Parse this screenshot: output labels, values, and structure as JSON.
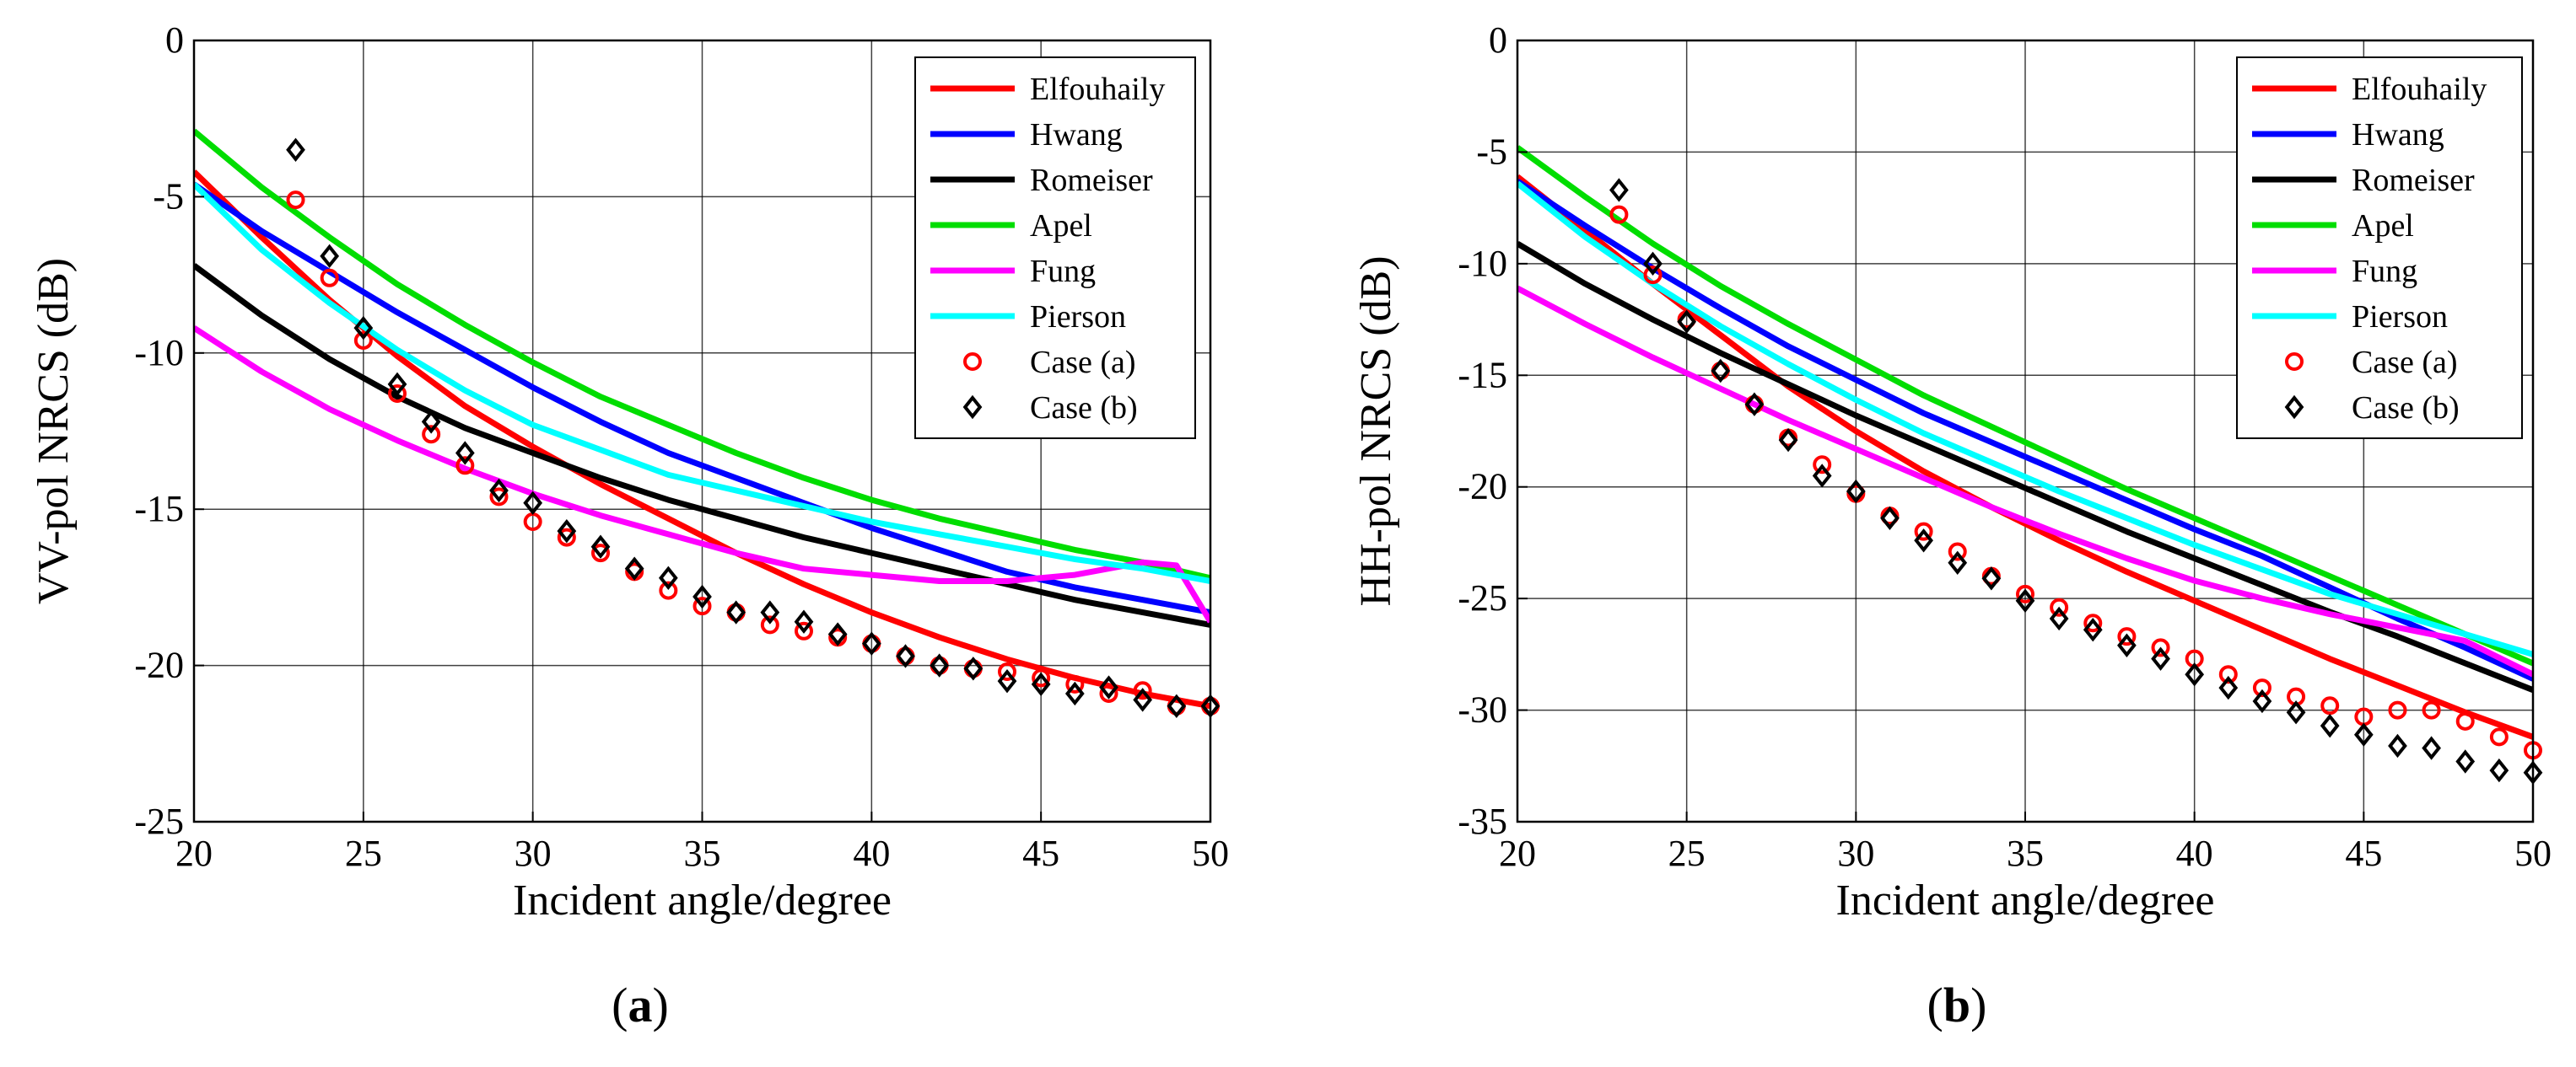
{
  "chart_data": [
    {
      "type": "line",
      "panel_label": "(a)",
      "panel_letter": "a",
      "xlabel": "Incident angle/degree",
      "ylabel": "VV-pol NRCS (dB)",
      "xlim": [
        20,
        50
      ],
      "ylim": [
        -25,
        0
      ],
      "xticks": [
        20,
        25,
        30,
        35,
        40,
        45,
        50
      ],
      "yticks": [
        0,
        -5,
        -10,
        -15,
        -20,
        -25
      ],
      "grid": true,
      "legend_position": "top-right",
      "series": [
        {
          "name": "Elfouhaily",
          "kind": "line",
          "color": "#ff0000",
          "x": [
            20,
            22,
            24,
            26,
            28,
            30,
            32,
            34,
            36,
            38,
            40,
            42,
            44,
            46,
            48,
            50
          ],
          "y": [
            -4.2,
            -6.3,
            -8.3,
            -10.1,
            -11.7,
            -13.0,
            -14.2,
            -15.3,
            -16.4,
            -17.4,
            -18.3,
            -19.1,
            -19.8,
            -20.4,
            -20.9,
            -21.3
          ]
        },
        {
          "name": "Hwang",
          "kind": "line",
          "color": "#0000ff",
          "x": [
            20,
            22,
            24,
            26,
            28,
            30,
            32,
            34,
            36,
            38,
            40,
            42,
            44,
            46,
            48,
            50
          ],
          "y": [
            -4.6,
            -6.1,
            -7.4,
            -8.7,
            -9.9,
            -11.1,
            -12.2,
            -13.2,
            -14.0,
            -14.8,
            -15.6,
            -16.3,
            -17.0,
            -17.5,
            -17.9,
            -18.3
          ]
        },
        {
          "name": "Romeiser",
          "kind": "line",
          "color": "#000000",
          "x": [
            20,
            22,
            24,
            26,
            28,
            30,
            32,
            34,
            36,
            38,
            40,
            42,
            44,
            46,
            48,
            50
          ],
          "y": [
            -7.2,
            -8.8,
            -10.2,
            -11.4,
            -12.4,
            -13.2,
            -14.0,
            -14.7,
            -15.3,
            -15.9,
            -16.4,
            -16.9,
            -17.4,
            -17.9,
            -18.3,
            -18.7
          ]
        },
        {
          "name": "Apel",
          "kind": "line",
          "color": "#00dd00",
          "x": [
            20,
            22,
            24,
            26,
            28,
            30,
            32,
            34,
            36,
            38,
            40,
            42,
            44,
            46,
            48,
            50
          ],
          "y": [
            -2.9,
            -4.7,
            -6.3,
            -7.8,
            -9.1,
            -10.3,
            -11.4,
            -12.3,
            -13.2,
            -14.0,
            -14.7,
            -15.3,
            -15.8,
            -16.3,
            -16.7,
            -17.2
          ]
        },
        {
          "name": "Fung",
          "kind": "line",
          "color": "#ff00ff",
          "x": [
            20,
            22,
            24,
            26,
            28,
            30,
            32,
            34,
            36,
            38,
            40,
            42,
            44,
            46,
            48,
            49,
            50
          ],
          "y": [
            -9.2,
            -10.6,
            -11.8,
            -12.8,
            -13.7,
            -14.5,
            -15.2,
            -15.8,
            -16.4,
            -16.9,
            -17.1,
            -17.3,
            -17.3,
            -17.1,
            -16.7,
            -16.8,
            -18.6
          ]
        },
        {
          "name": "Pierson",
          "kind": "line",
          "color": "#00ffff",
          "x": [
            20,
            22,
            24,
            26,
            28,
            30,
            32,
            34,
            36,
            38,
            40,
            42,
            44,
            46,
            48,
            50
          ],
          "y": [
            -4.6,
            -6.7,
            -8.4,
            -9.9,
            -11.2,
            -12.3,
            -13.1,
            -13.9,
            -14.4,
            -14.9,
            -15.4,
            -15.8,
            -16.2,
            -16.6,
            -16.9,
            -17.3
          ]
        },
        {
          "name": "Case (a)",
          "kind": "marker-circle",
          "color": "#ff0000",
          "x": [
            23,
            24,
            25,
            26,
            27,
            28,
            29,
            30,
            31,
            32,
            33,
            34,
            35,
            36,
            37,
            38,
            39,
            40,
            41,
            42,
            43,
            44,
            45,
            46,
            47,
            48,
            49,
            50
          ],
          "y": [
            -5.1,
            -7.6,
            -9.6,
            -11.3,
            -12.6,
            -13.6,
            -14.6,
            -15.4,
            -15.9,
            -16.4,
            -17.0,
            -17.6,
            -18.1,
            -18.3,
            -18.7,
            -18.9,
            -19.1,
            -19.3,
            -19.7,
            -20.0,
            -20.1,
            -20.2,
            -20.4,
            -20.6,
            -20.9,
            -20.8,
            -21.3,
            -21.3
          ]
        },
        {
          "name": "Case (b)",
          "kind": "marker-diamond",
          "color": "#000000",
          "x": [
            23,
            24,
            25,
            26,
            27,
            28,
            29,
            30,
            31,
            32,
            33,
            34,
            35,
            36,
            37,
            38,
            39,
            40,
            41,
            42,
            43,
            44,
            45,
            46,
            47,
            48,
            49,
            50
          ],
          "y": [
            -3.5,
            -6.9,
            -9.2,
            -11.0,
            -12.2,
            -13.2,
            -14.4,
            -14.8,
            -15.7,
            -16.2,
            -16.9,
            -17.2,
            -17.8,
            -18.3,
            -18.3,
            -18.6,
            -19.0,
            -19.3,
            -19.7,
            -20.0,
            -20.1,
            -20.5,
            -20.6,
            -20.9,
            -20.7,
            -21.1,
            -21.3,
            -21.3
          ]
        }
      ]
    },
    {
      "type": "line",
      "panel_label": "(b)",
      "panel_letter": "b",
      "xlabel": "Incident angle/degree",
      "ylabel": "HH-pol NRCS (dB)",
      "xlim": [
        20,
        50
      ],
      "ylim": [
        -35,
        0
      ],
      "xticks": [
        20,
        25,
        30,
        35,
        40,
        45,
        50
      ],
      "yticks": [
        0,
        -5,
        -10,
        -15,
        -20,
        -25,
        -30,
        -35
      ],
      "grid": true,
      "legend_position": "top-right",
      "series": [
        {
          "name": "Elfouhaily",
          "kind": "line",
          "color": "#ff0000",
          "x": [
            20,
            22,
            24,
            26,
            28,
            30,
            32,
            34,
            36,
            38,
            40,
            42,
            44,
            46,
            48,
            50
          ],
          "y": [
            -6.1,
            -8.5,
            -10.9,
            -13.2,
            -15.5,
            -17.5,
            -19.3,
            -20.9,
            -22.4,
            -23.8,
            -25.1,
            -26.4,
            -27.7,
            -28.9,
            -30.1,
            -31.2
          ]
        },
        {
          "name": "Hwang",
          "kind": "line",
          "color": "#0000ff",
          "x": [
            20,
            22,
            24,
            26,
            28,
            30,
            32,
            34,
            36,
            38,
            40,
            42,
            44,
            46,
            48,
            50
          ],
          "y": [
            -6.3,
            -8.3,
            -10.2,
            -12.0,
            -13.7,
            -15.2,
            -16.7,
            -18.0,
            -19.3,
            -20.6,
            -21.9,
            -23.1,
            -24.5,
            -25.9,
            -27.2,
            -28.6
          ]
        },
        {
          "name": "Romeiser",
          "kind": "line",
          "color": "#000000",
          "x": [
            20,
            22,
            24,
            26,
            28,
            30,
            32,
            34,
            36,
            38,
            40,
            42,
            44,
            46,
            48,
            50
          ],
          "y": [
            -9.1,
            -10.9,
            -12.5,
            -14.0,
            -15.4,
            -16.8,
            -18.1,
            -19.4,
            -20.7,
            -22.0,
            -23.2,
            -24.4,
            -25.6,
            -26.7,
            -27.9,
            -29.1
          ]
        },
        {
          "name": "Apel",
          "kind": "line",
          "color": "#00dd00",
          "x": [
            20,
            22,
            24,
            26,
            28,
            30,
            32,
            34,
            36,
            38,
            40,
            42,
            44,
            46,
            48,
            50
          ],
          "y": [
            -4.8,
            -7.0,
            -9.1,
            -11.0,
            -12.7,
            -14.3,
            -15.9,
            -17.3,
            -18.7,
            -20.1,
            -21.4,
            -22.7,
            -24.0,
            -25.3,
            -26.6,
            -27.9
          ]
        },
        {
          "name": "Fung",
          "kind": "line",
          "color": "#ff00ff",
          "x": [
            20,
            22,
            24,
            26,
            28,
            30,
            32,
            34,
            36,
            38,
            40,
            42,
            44,
            46,
            48,
            50
          ],
          "y": [
            -11.1,
            -12.7,
            -14.2,
            -15.6,
            -17.0,
            -18.3,
            -19.6,
            -20.9,
            -22.1,
            -23.2,
            -24.2,
            -25.0,
            -25.7,
            -26.3,
            -26.9,
            -28.4
          ]
        },
        {
          "name": "Pierson",
          "kind": "line",
          "color": "#00ffff",
          "x": [
            20,
            22,
            24,
            26,
            28,
            30,
            32,
            34,
            36,
            38,
            40,
            42,
            44,
            46,
            48,
            50
          ],
          "y": [
            -6.4,
            -8.8,
            -10.9,
            -12.8,
            -14.5,
            -16.1,
            -17.6,
            -18.9,
            -20.2,
            -21.4,
            -22.6,
            -23.7,
            -24.8,
            -25.7,
            -26.6,
            -27.5
          ]
        },
        {
          "name": "Case (a)",
          "kind": "marker-circle",
          "color": "#ff0000",
          "x": [
            23,
            24,
            25,
            26,
            27,
            28,
            29,
            30,
            31,
            32,
            33,
            34,
            35,
            36,
            37,
            38,
            39,
            40,
            41,
            42,
            43,
            44,
            45,
            46,
            47,
            48,
            49,
            50
          ],
          "y": [
            -7.8,
            -10.5,
            -12.5,
            -14.8,
            -16.3,
            -17.8,
            -19.0,
            -20.3,
            -21.3,
            -22.0,
            -22.9,
            -24.0,
            -24.8,
            -25.4,
            -26.1,
            -26.7,
            -27.2,
            -27.7,
            -28.4,
            -29.0,
            -29.4,
            -29.8,
            -30.3,
            -30.0,
            -30.0,
            -30.5,
            -31.2,
            -31.8
          ]
        },
        {
          "name": "Case (b)",
          "kind": "marker-diamond",
          "color": "#000000",
          "x": [
            23,
            24,
            25,
            26,
            27,
            28,
            29,
            30,
            31,
            32,
            33,
            34,
            35,
            36,
            37,
            38,
            39,
            40,
            41,
            42,
            43,
            44,
            45,
            46,
            47,
            48,
            49,
            50
          ],
          "y": [
            -6.7,
            -10.0,
            -12.6,
            -14.8,
            -16.3,
            -17.9,
            -19.5,
            -20.2,
            -21.4,
            -22.4,
            -23.4,
            -24.1,
            -25.1,
            -25.9,
            -26.4,
            -27.1,
            -27.7,
            -28.4,
            -29.0,
            -29.6,
            -30.1,
            -30.7,
            -31.1,
            -31.6,
            -31.7,
            -32.3,
            -32.7,
            -32.8
          ]
        }
      ]
    }
  ]
}
